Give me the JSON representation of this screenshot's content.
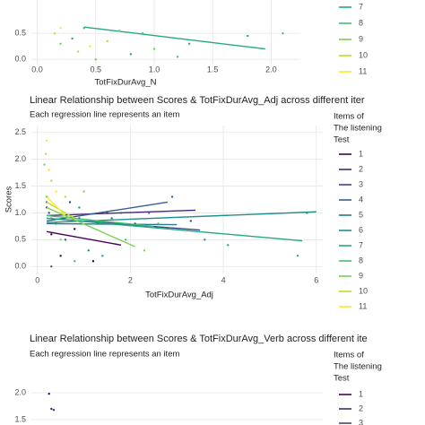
{
  "chart_data": [
    {
      "type": "scatter",
      "xlabel": "TotFixDurAvg_N",
      "xlim": [
        -0.05,
        2.25
      ],
      "ylim": [
        -0.1,
        1.14
      ],
      "xticks": [
        {
          "value": 0,
          "label": "0.0"
        },
        {
          "value": 0.5,
          "label": "0.5"
        },
        {
          "value": 1,
          "label": "1.0"
        },
        {
          "value": 1.5,
          "label": "1.5"
        },
        {
          "value": 2,
          "label": "2.0"
        }
      ],
      "yticks": [
        {
          "value": 0,
          "label": "0.0"
        },
        {
          "value": 0.5,
          "label": "0.5"
        }
      ],
      "grid": true,
      "series": [
        {
          "name": "7",
          "color": "#22A884",
          "line": {
            "x": [
              0.4,
              1.95
            ],
            "values": [
              0.62,
              0.2
            ]
          },
          "points": {
            "x": [
              0.3,
              0.8,
              1.3,
              1.8
            ],
            "values": [
              0.4,
              0.1,
              0.3,
              0.45
            ]
          }
        },
        {
          "name": "8",
          "color": "#43BF71",
          "line": {
            "x": [],
            "values": []
          },
          "points": {
            "x": [
              0.4,
              0.9,
              1.2,
              2.1
            ],
            "values": [
              0.6,
              0.5,
              0.05,
              0.5
            ]
          }
        },
        {
          "name": "9",
          "color": "#7AD151",
          "line": {
            "x": [],
            "values": []
          },
          "points": {
            "x": [
              0.2,
              0.5,
              0.7,
              1.0
            ],
            "values": [
              0.3,
              0.0,
              0.55,
              0.2
            ]
          }
        },
        {
          "name": "10",
          "color": "#BBDF27",
          "line": {
            "x": [],
            "values": []
          },
          "points": {
            "x": [
              0.15,
              0.35,
              0.6
            ],
            "values": [
              0.5,
              0.15,
              0.35
            ]
          }
        },
        {
          "name": "11",
          "color": "#FDE725",
          "line": {
            "x": [],
            "values": []
          },
          "points": {
            "x": [
              0.2,
              0.45
            ],
            "values": [
              0.6,
              0.25
            ]
          }
        }
      ]
    },
    {
      "type": "scatter",
      "title": "Linear Relationship between Scores & TotFixDurAvg_Adj across different iter",
      "subtitle": "Each regression line represents an item",
      "xlabel": "TotFixDurAvg_Adj",
      "ylabel": "Scores",
      "legend_title": [
        "Items of",
        "The listening",
        "Test"
      ],
      "xlim": [
        -0.13,
        6.14
      ],
      "ylim": [
        -0.13,
        2.63
      ],
      "xticks": [
        0,
        2,
        4,
        6
      ],
      "yticks": [
        {
          "value": 0,
          "label": "0.0"
        },
        {
          "value": 0.5,
          "label": "0.5"
        },
        {
          "value": 1,
          "label": "1.0"
        },
        {
          "value": 1.5,
          "label": "1.5"
        },
        {
          "value": 2,
          "label": "2.0"
        },
        {
          "value": 2.5,
          "label": "2.5"
        }
      ],
      "grid": true,
      "series": [
        {
          "name": "1",
          "color": "#440154",
          "line": {
            "x": [
              0.2,
              1.8
            ],
            "values": [
              0.65,
              0.4
            ]
          },
          "points": {
            "x": [
              0.3,
              0.5,
              1.2,
              0.8
            ],
            "values": [
              0.6,
              0.2,
              0.1,
              0.7
            ]
          }
        },
        {
          "name": "2",
          "color": "#482576",
          "line": {
            "x": [
              0.2,
              3.4
            ],
            "values": [
              0.95,
              1.05
            ]
          },
          "points": {
            "x": [
              0.2,
              0.9,
              1.5,
              2.1
            ],
            "values": [
              1.1,
              0.9,
              1.0,
              0.8
            ]
          }
        },
        {
          "name": "3",
          "color": "#414487",
          "line": {
            "x": [
              0.2,
              3.5
            ],
            "values": [
              0.9,
              0.68
            ]
          },
          "points": {
            "x": [
              0.25,
              0.7,
              1.3,
              3.3
            ],
            "values": [
              1.0,
              1.2,
              0.8,
              0.85
            ]
          }
        },
        {
          "name": "4",
          "color": "#35608D",
          "line": {
            "x": [
              0.2,
              2.8
            ],
            "values": [
              0.85,
              1.2
            ]
          },
          "points": {
            "x": [
              0.3,
              0.6,
              2.9,
              1.8
            ],
            "values": [
              0.0,
              0.5,
              1.3,
              1.0
            ]
          }
        },
        {
          "name": "5",
          "color": "#2A788E",
          "line": {
            "x": [
              0.2,
              3.0
            ],
            "values": [
              0.8,
              0.78
            ]
          },
          "points": {
            "x": [
              0.2,
              1.1,
              1.6,
              2.4
            ],
            "values": [
              1.2,
              0.3,
              0.9,
              1.0
            ]
          }
        },
        {
          "name": "6",
          "color": "#21908C",
          "line": {
            "x": [
              0.2,
              6.0
            ],
            "values": [
              0.82,
              1.02
            ]
          },
          "points": {
            "x": [
              0.4,
              0.9,
              5.8,
              3.6
            ],
            "values": [
              0.8,
              1.1,
              1.0,
              0.5
            ]
          }
        },
        {
          "name": "7",
          "color": "#22A884",
          "line": {
            "x": [
              0.2,
              5.7
            ],
            "values": [
              0.9,
              0.48
            ]
          },
          "points": {
            "x": [
              0.3,
              1.4,
              4.1,
              5.6
            ],
            "values": [
              0.9,
              0.2,
              0.4,
              0.2
            ]
          }
        },
        {
          "name": "8",
          "color": "#43BF71",
          "line": {
            "x": [
              0.2,
              2.5
            ],
            "values": [
              0.95,
              0.75
            ]
          },
          "points": {
            "x": [
              0.2,
              0.8,
              1.9,
              2.6
            ],
            "values": [
              1.3,
              0.1,
              0.5,
              0.8
            ]
          }
        },
        {
          "name": "9",
          "color": "#7AD151",
          "line": {
            "x": [
              0.2,
              2.1
            ],
            "values": [
              1.1,
              0.37
            ]
          },
          "points": {
            "x": [
              0.15,
              0.5,
              1.0,
              2.3
            ],
            "values": [
              1.9,
              0.5,
              1.4,
              0.3
            ]
          }
        },
        {
          "name": "10",
          "color": "#BBDF27",
          "line": {
            "x": [
              0.2,
              0.8
            ],
            "values": [
              1.2,
              0.9
            ]
          },
          "points": {
            "x": [
              0.18,
              0.3,
              0.6
            ],
            "values": [
              2.1,
              1.6,
              1.3
            ]
          }
        },
        {
          "name": "11",
          "color": "#FDE725",
          "line": {
            "x": [
              0.2,
              0.6
            ],
            "values": [
              1.3,
              0.95
            ]
          },
          "points": {
            "x": [
              0.2,
              0.25,
              0.4
            ],
            "values": [
              2.35,
              1.8,
              1.4
            ]
          }
        }
      ]
    },
    {
      "type": "scatter",
      "title": "Linear Relationship between Scores & TotFixDurAvg_Verb across different ite",
      "subtitle": "Each regression line represents an item",
      "legend_title": [
        "Items of",
        "The listening",
        "Test"
      ],
      "xlim": [
        -0.13,
        6.14
      ],
      "ylim": [
        1.4,
        2.55
      ],
      "xticks": [],
      "yticks": [
        {
          "value": 1.5,
          "label": "1.5"
        },
        {
          "value": 2,
          "label": "2.0"
        }
      ],
      "grid": true,
      "series": [
        {
          "name": "1",
          "color": "#440154",
          "line": {
            "x": [],
            "values": []
          },
          "points": {
            "x": [
              0.25
            ],
            "values": [
              1.98
            ]
          }
        },
        {
          "name": "2",
          "color": "#482576",
          "line": {
            "x": [],
            "values": []
          },
          "points": {
            "x": [
              0.3,
              0.35
            ],
            "values": [
              1.7,
              1.68
            ]
          }
        },
        {
          "name": "3",
          "color": "#414487",
          "line": {
            "x": [],
            "values": []
          },
          "points": {
            "x": [],
            "values": []
          }
        }
      ]
    }
  ]
}
